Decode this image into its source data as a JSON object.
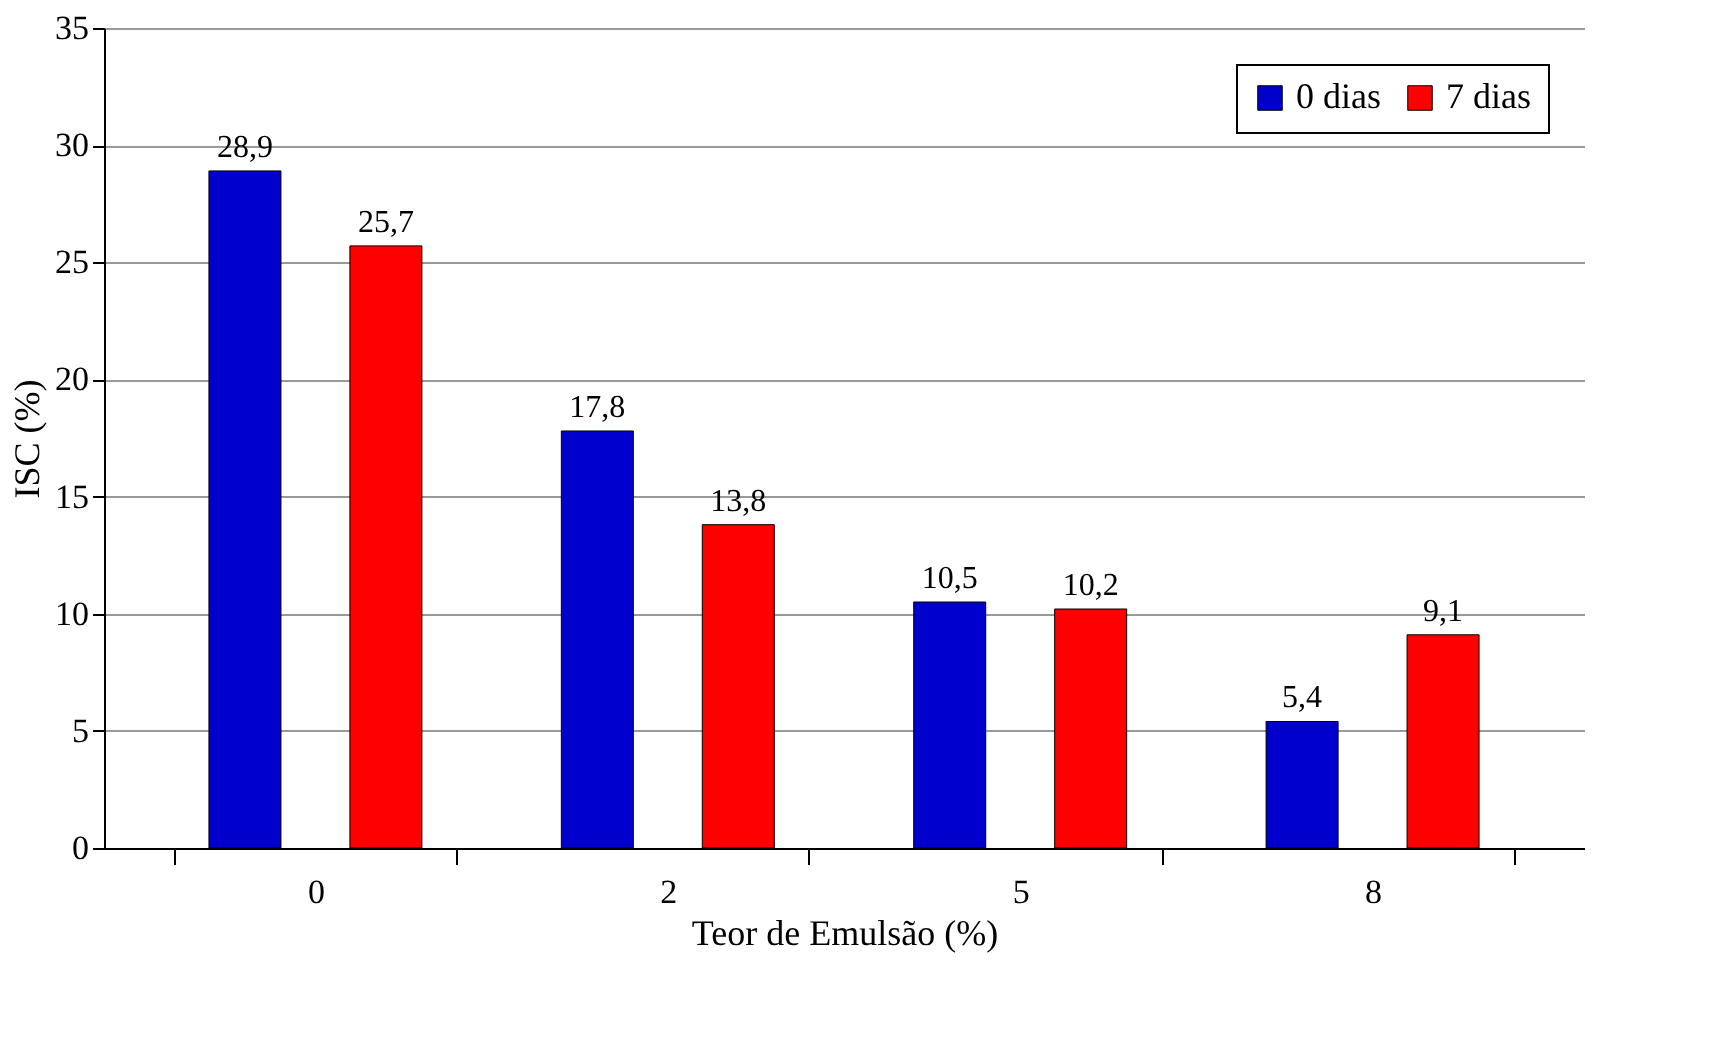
{
  "chart_data": {
    "type": "bar",
    "xlabel": "Teor de Emulsão (%)",
    "ylabel": "ISC (%)",
    "categories": [
      "0",
      "2",
      "5",
      "8"
    ],
    "series": [
      {
        "name": "0 dias",
        "color": "#0000cc",
        "values": [
          28.9,
          17.8,
          10.5,
          5.4
        ],
        "value_labels": [
          "28,9",
          "17,8",
          "10,5",
          "5,4"
        ]
      },
      {
        "name": "7 dias",
        "color": "#ff0000",
        "values": [
          25.7,
          13.8,
          10.2,
          9.1
        ],
        "value_labels": [
          "25,7",
          "13,8",
          "10,2",
          "9,1"
        ]
      }
    ],
    "ylim": [
      0,
      35
    ],
    "yticks": [
      0,
      5,
      10,
      15,
      20,
      25,
      30,
      35
    ],
    "grid": "y",
    "legend": "top right"
  }
}
